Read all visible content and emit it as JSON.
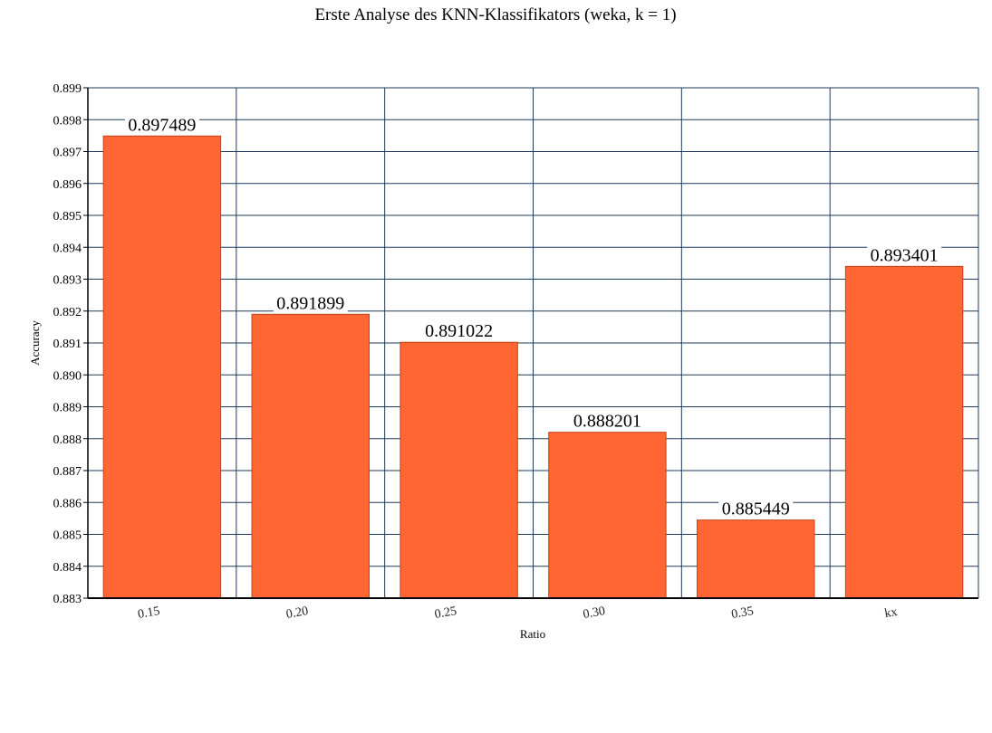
{
  "chart_data": {
    "type": "bar",
    "title": "Erste Analyse des KNN-Klassifikators (weka, k = 1)",
    "xlabel": "Ratio",
    "ylabel": "Accuracy",
    "categories": [
      "0.15",
      "0.20",
      "0.25",
      "0.30",
      "0.35",
      "kx"
    ],
    "values": [
      0.897489,
      0.891899,
      0.891022,
      0.888201,
      0.885449,
      0.893401
    ],
    "value_labels": [
      "0.897489",
      "0.891899",
      "0.891022",
      "0.888201",
      "0.885449",
      "0.893401"
    ],
    "ylim": [
      0.883,
      0.899
    ],
    "yticks": [
      "0.883",
      "0.884",
      "0.885",
      "0.886",
      "0.887",
      "0.888",
      "0.889",
      "0.890",
      "0.891",
      "0.892",
      "0.893",
      "0.894",
      "0.895",
      "0.896",
      "0.897",
      "0.898",
      "0.899"
    ],
    "grid": true,
    "legend": "none",
    "colors": {
      "bar_fill": "#ff6633",
      "bar_stroke": "#c0431a",
      "grid": "#1f3a5a",
      "axis": "#000000"
    }
  }
}
